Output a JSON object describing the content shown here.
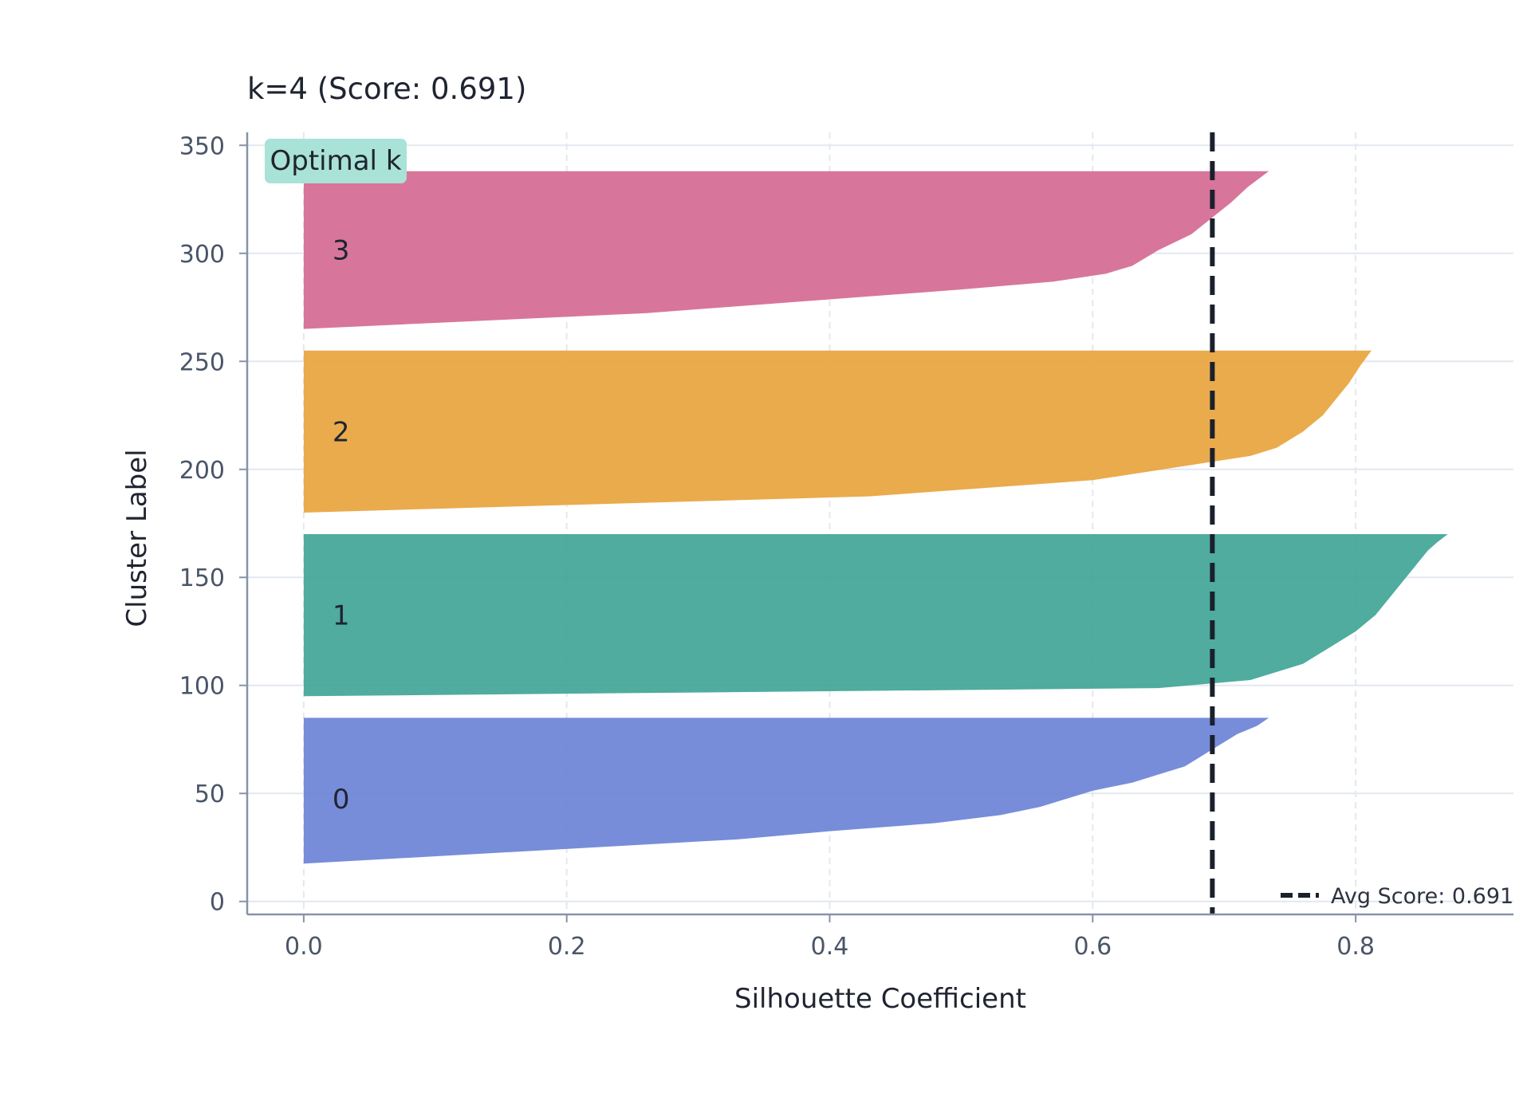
{
  "chart_data": {
    "type": "area",
    "title": "k=4 (Score: 0.691)",
    "xlabel": "Silhouette Coefficient",
    "ylabel": "Cluster Label",
    "xlim": [
      -0.043,
      0.92
    ],
    "ylim": [
      -6,
      356
    ],
    "xticks": [
      0.0,
      0.2,
      0.4,
      0.6,
      0.8
    ],
    "xtick_labels": [
      "0.0",
      "0.2",
      "0.4",
      "0.6",
      "0.8"
    ],
    "yticks": [
      0,
      50,
      100,
      150,
      200,
      250,
      300,
      350
    ],
    "ytick_labels": [
      "0",
      "50",
      "100",
      "150",
      "200",
      "250",
      "300",
      "350"
    ],
    "grid": true,
    "legend_position": "bottom-right",
    "badge": "Optimal k",
    "avg_line": {
      "label": "Avg Score: 0.691",
      "value": 0.691,
      "color": "#1a202c"
    },
    "clusters": [
      {
        "label": "0",
        "color": "#6b83d6",
        "y_start": 10,
        "y_end": 85,
        "profile": [
          [
            0,
            0.0
          ],
          [
            0.1,
            0.0
          ],
          [
            0.2,
            0.22
          ],
          [
            0.25,
            0.33
          ],
          [
            0.3,
            0.4
          ],
          [
            0.35,
            0.48
          ],
          [
            0.4,
            0.53
          ],
          [
            0.45,
            0.56
          ],
          [
            0.5,
            0.58
          ],
          [
            0.55,
            0.6
          ],
          [
            0.6,
            0.63
          ],
          [
            0.65,
            0.65
          ],
          [
            0.7,
            0.67
          ],
          [
            0.75,
            0.68
          ],
          [
            0.8,
            0.69
          ],
          [
            0.85,
            0.7
          ],
          [
            0.9,
            0.71
          ],
          [
            0.95,
            0.725
          ],
          [
            1.0,
            0.734
          ]
        ]
      },
      {
        "label": "1",
        "color": "#40a597",
        "y_start": 95,
        "y_end": 170,
        "profile": [
          [
            0,
            0.0
          ],
          [
            0.05,
            0.65
          ],
          [
            0.1,
            0.72
          ],
          [
            0.2,
            0.76
          ],
          [
            0.3,
            0.78
          ],
          [
            0.4,
            0.8
          ],
          [
            0.5,
            0.815
          ],
          [
            0.6,
            0.825
          ],
          [
            0.7,
            0.835
          ],
          [
            0.8,
            0.845
          ],
          [
            0.9,
            0.855
          ],
          [
            0.95,
            0.862
          ],
          [
            1.0,
            0.87
          ]
        ]
      },
      {
        "label": "2",
        "color": "#e8a43e",
        "y_start": 180,
        "y_end": 255,
        "profile": [
          [
            0,
            0.0
          ],
          [
            0.1,
            0.43
          ],
          [
            0.2,
            0.6
          ],
          [
            0.3,
            0.68
          ],
          [
            0.35,
            0.72
          ],
          [
            0.4,
            0.74
          ],
          [
            0.5,
            0.76
          ],
          [
            0.6,
            0.775
          ],
          [
            0.7,
            0.785
          ],
          [
            0.8,
            0.795
          ],
          [
            0.9,
            0.803
          ],
          [
            1.0,
            0.812
          ]
        ]
      },
      {
        "label": "3",
        "color": "#d46a91",
        "y_start": 265,
        "y_end": 338,
        "profile": [
          [
            0,
            0.0
          ],
          [
            0.1,
            0.26
          ],
          [
            0.2,
            0.42
          ],
          [
            0.25,
            0.5
          ],
          [
            0.3,
            0.57
          ],
          [
            0.35,
            0.61
          ],
          [
            0.4,
            0.63
          ],
          [
            0.5,
            0.65
          ],
          [
            0.6,
            0.675
          ],
          [
            0.7,
            0.69
          ],
          [
            0.8,
            0.705
          ],
          [
            0.9,
            0.718
          ],
          [
            1.0,
            0.734
          ]
        ]
      }
    ]
  }
}
